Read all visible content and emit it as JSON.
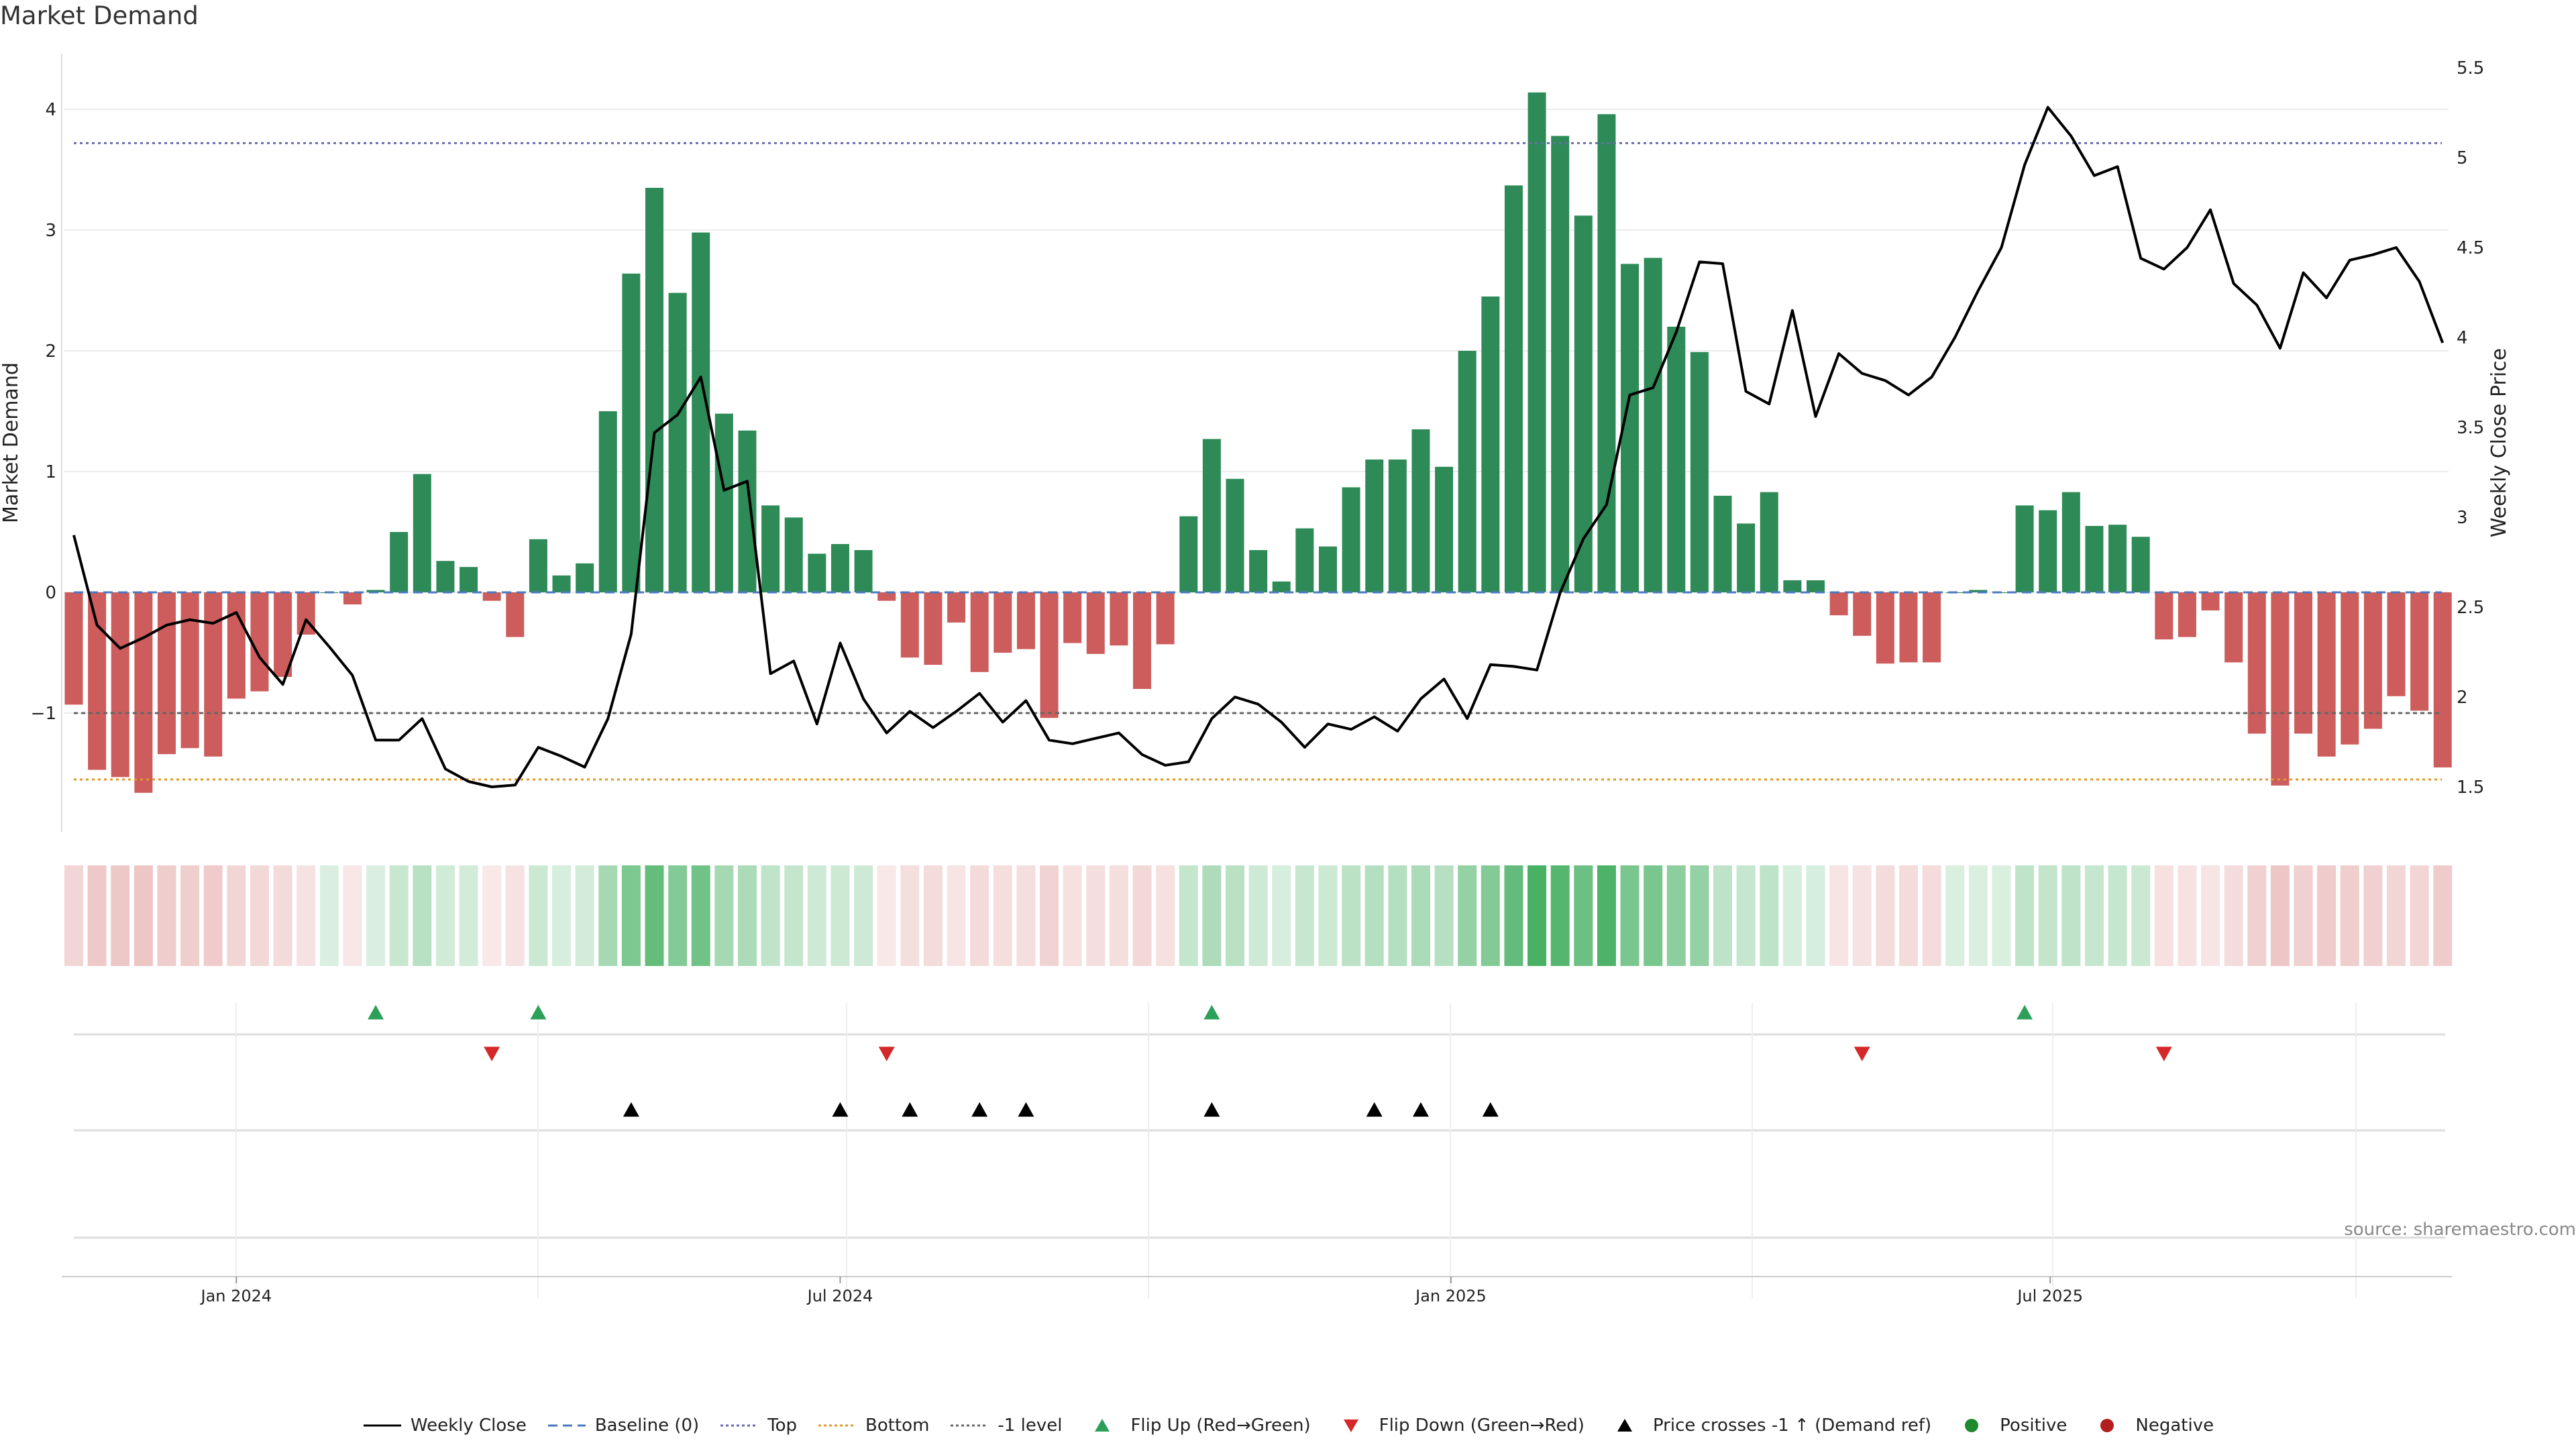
{
  "title": "Market Demand",
  "source": "source: sharemaestro.com",
  "chart_data": {
    "type": "bar",
    "title": "Market Demand",
    "ylabel": "Market Demand",
    "y2label": "Weekly Close Price",
    "ylim": [
      -2.0,
      4.5
    ],
    "y2lim": [
      1.4,
      5.55
    ],
    "yticks": [
      "−1",
      "0",
      "1",
      "2",
      "3",
      "4"
    ],
    "y2ticks": [
      "1.5",
      "2",
      "2.5",
      "3",
      "3.5",
      "4",
      "4.5",
      "5",
      "5.5"
    ],
    "xticks": [
      {
        "label": "Jan 2024",
        "week": 7
      },
      {
        "label": "Jul 2024",
        "week": 33
      },
      {
        "label": "Jan 2025",
        "week": 59.3
      },
      {
        "label": "Jul 2025",
        "week": 85.1
      }
    ],
    "levels": {
      "top": 3.72,
      "bottom": -1.55,
      "minus_one": -1.0,
      "baseline": 0
    },
    "demand": [
      -0.93,
      -1.47,
      -1.53,
      -1.66,
      -1.34,
      -1.29,
      -1.36,
      -0.88,
      -0.82,
      -0.7,
      -0.35,
      0,
      -0.1,
      0.02,
      0.5,
      0.98,
      0.26,
      0.21,
      -0.07,
      -0.37,
      0.44,
      0.14,
      0.24,
      1.5,
      2.64,
      3.35,
      2.48,
      2.98,
      1.48,
      1.34,
      0.72,
      0.62,
      0.32,
      0.4,
      0.35,
      -0.07,
      -0.54,
      -0.6,
      -0.25,
      -0.66,
      -0.5,
      -0.47,
      -1.04,
      -0.42,
      -0.51,
      -0.44,
      -0.8,
      -0.43,
      0.63,
      1.27,
      0.94,
      0.35,
      0.09,
      0.53,
      0.38,
      0.87,
      1.1,
      1.1,
      1.35,
      1.04,
      2.0,
      2.45,
      3.37,
      4.14,
      3.78,
      3.12,
      3.96,
      2.72,
      2.77,
      2.2,
      1.99,
      0.8,
      0.57,
      0.83,
      0.1,
      0.1,
      -0.19,
      -0.36,
      -0.59,
      -0.58,
      -0.58,
      0,
      0.02,
      0,
      0.72,
      0.68,
      0.83,
      0.55,
      0.56,
      0.46,
      -0.39,
      -0.37,
      -0.15,
      -0.58,
      -1.17,
      -1.6,
      -1.17,
      -1.36,
      -1.26,
      -1.13,
      -0.86,
      -0.98,
      -1.45
    ],
    "price": [
      2.9,
      2.4,
      2.27,
      2.33,
      2.4,
      2.43,
      2.41,
      2.47,
      2.22,
      2.07,
      2.43,
      2.28,
      2.12,
      1.76,
      1.76,
      1.88,
      1.6,
      1.53,
      1.5,
      1.51,
      1.72,
      1.67,
      1.61,
      1.88,
      2.35,
      3.47,
      3.57,
      3.78,
      3.15,
      3.2,
      2.13,
      2.2,
      1.85,
      2.3,
      1.99,
      1.8,
      1.92,
      1.83,
      1.92,
      2.02,
      1.86,
      1.98,
      1.76,
      1.74,
      1.77,
      1.8,
      1.68,
      1.62,
      1.64,
      1.88,
      2.0,
      1.96,
      1.86,
      1.72,
      1.85,
      1.82,
      1.89,
      1.81,
      1.99,
      2.1,
      1.88,
      2.18,
      2.17,
      2.15,
      2.58,
      2.88,
      3.07,
      3.68,
      3.72,
      4.03,
      4.42,
      4.41,
      3.7,
      3.63,
      4.15,
      3.56,
      3.91,
      3.8,
      3.76,
      3.68,
      3.78,
      4.0,
      4.26,
      4.5,
      4.96,
      5.28,
      5.12,
      4.9,
      4.95,
      4.44,
      4.38,
      4.5,
      4.71,
      4.3,
      4.18,
      3.94,
      4.36,
      4.22,
      4.43,
      4.46,
      4.5,
      4.31,
      3.97
    ],
    "flip_up_weeks": [
      13,
      20,
      49,
      84
    ],
    "flip_down_weeks": [
      18,
      35,
      77,
      90
    ],
    "price_cross_weeks": [
      24,
      33,
      36,
      39,
      41,
      49,
      56,
      58,
      61
    ],
    "positive_weeks": [],
    "negative_weeks": [],
    "legend": [
      {
        "label": "Weekly Close",
        "kind": "line",
        "color": "#000000"
      },
      {
        "label": "Baseline (0)",
        "kind": "dash",
        "color": "#4a78c2"
      },
      {
        "label": "Top",
        "kind": "dot",
        "color": "#6b6bb0"
      },
      {
        "label": "Bottom",
        "kind": "dot",
        "color": "#e09a2b"
      },
      {
        "label": "-1 level",
        "kind": "dot",
        "color": "#666666"
      },
      {
        "label": "Flip Up (Red→Green)",
        "kind": "tri-up",
        "color": "#2ca05a"
      },
      {
        "label": "Flip Down (Green→Red)",
        "kind": "tri-down",
        "color": "#d62828"
      },
      {
        "label": "Price crosses -1 ↑ (Demand ref)",
        "kind": "tri-up",
        "color": "#000000"
      },
      {
        "label": "Positive",
        "kind": "dot-circle",
        "color": "#1e8a2e"
      },
      {
        "label": "Negative",
        "kind": "dot-circle",
        "color": "#b21e1e"
      }
    ],
    "colors": {
      "positive_bar": "#2e8b57",
      "negative_bar": "#cd5c5c",
      "price_line": "#000000"
    }
  }
}
